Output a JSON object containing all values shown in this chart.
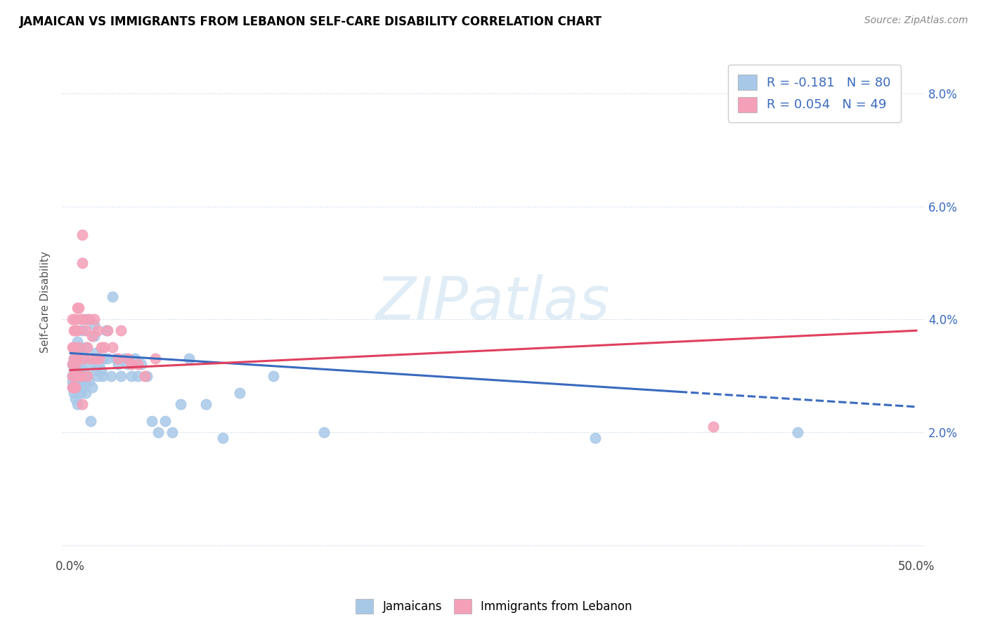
{
  "title": "JAMAICAN VS IMMIGRANTS FROM LEBANON SELF-CARE DISABILITY CORRELATION CHART",
  "source": "Source: ZipAtlas.com",
  "ylabel": "Self-Care Disability",
  "xlim": [
    -0.005,
    0.505
  ],
  "ylim": [
    -0.002,
    0.088
  ],
  "color_blue": "#a8c8e8",
  "color_pink": "#f4a0b8",
  "color_line_blue": "#3a6abf",
  "color_line_pink": "#e04060",
  "watermark": "ZIPatlas",
  "blue_line_y_start": 0.034,
  "blue_line_y_end": 0.0245,
  "blue_line_solid_end": 0.36,
  "pink_line_y_start": 0.031,
  "pink_line_y_end": 0.038,
  "jamaicans_x": [
    0.001,
    0.001,
    0.001,
    0.001,
    0.002,
    0.002,
    0.002,
    0.002,
    0.002,
    0.002,
    0.003,
    0.003,
    0.003,
    0.003,
    0.003,
    0.003,
    0.003,
    0.004,
    0.004,
    0.004,
    0.004,
    0.004,
    0.005,
    0.005,
    0.005,
    0.005,
    0.006,
    0.006,
    0.006,
    0.006,
    0.007,
    0.007,
    0.007,
    0.008,
    0.008,
    0.008,
    0.009,
    0.009,
    0.01,
    0.01,
    0.011,
    0.011,
    0.012,
    0.013,
    0.014,
    0.014,
    0.015,
    0.015,
    0.016,
    0.017,
    0.018,
    0.019,
    0.02,
    0.021,
    0.022,
    0.024,
    0.025,
    0.027,
    0.028,
    0.03,
    0.032,
    0.034,
    0.036,
    0.038,
    0.04,
    0.042,
    0.045,
    0.048,
    0.052,
    0.056,
    0.06,
    0.065,
    0.07,
    0.08,
    0.09,
    0.1,
    0.12,
    0.15,
    0.31,
    0.43
  ],
  "jamaicans_y": [
    0.03,
    0.032,
    0.029,
    0.028,
    0.031,
    0.033,
    0.028,
    0.03,
    0.032,
    0.027,
    0.029,
    0.031,
    0.033,
    0.028,
    0.03,
    0.026,
    0.035,
    0.029,
    0.031,
    0.033,
    0.025,
    0.036,
    0.03,
    0.032,
    0.028,
    0.034,
    0.029,
    0.031,
    0.027,
    0.033,
    0.03,
    0.028,
    0.038,
    0.031,
    0.029,
    0.033,
    0.035,
    0.027,
    0.03,
    0.04,
    0.029,
    0.032,
    0.022,
    0.028,
    0.037,
    0.039,
    0.031,
    0.034,
    0.03,
    0.032,
    0.031,
    0.03,
    0.033,
    0.038,
    0.033,
    0.03,
    0.044,
    0.033,
    0.032,
    0.03,
    0.033,
    0.032,
    0.03,
    0.033,
    0.03,
    0.032,
    0.03,
    0.022,
    0.02,
    0.022,
    0.02,
    0.025,
    0.033,
    0.025,
    0.019,
    0.027,
    0.03,
    0.02,
    0.019,
    0.02
  ],
  "lebanon_x": [
    0.001,
    0.001,
    0.001,
    0.001,
    0.001,
    0.002,
    0.002,
    0.002,
    0.002,
    0.003,
    0.003,
    0.003,
    0.003,
    0.003,
    0.004,
    0.004,
    0.004,
    0.005,
    0.005,
    0.005,
    0.006,
    0.006,
    0.007,
    0.007,
    0.007,
    0.008,
    0.008,
    0.009,
    0.01,
    0.01,
    0.011,
    0.012,
    0.013,
    0.014,
    0.015,
    0.016,
    0.017,
    0.018,
    0.02,
    0.022,
    0.025,
    0.028,
    0.03,
    0.034,
    0.036,
    0.04,
    0.044,
    0.05,
    0.38
  ],
  "lebanon_y": [
    0.03,
    0.032,
    0.035,
    0.04,
    0.028,
    0.033,
    0.038,
    0.028,
    0.035,
    0.032,
    0.04,
    0.038,
    0.03,
    0.028,
    0.042,
    0.038,
    0.033,
    0.035,
    0.03,
    0.042,
    0.03,
    0.04,
    0.025,
    0.05,
    0.055,
    0.04,
    0.033,
    0.038,
    0.035,
    0.03,
    0.04,
    0.033,
    0.037,
    0.04,
    0.033,
    0.038,
    0.033,
    0.035,
    0.035,
    0.038,
    0.035,
    0.033,
    0.038,
    0.033,
    0.032,
    0.032,
    0.03,
    0.033,
    0.021
  ]
}
